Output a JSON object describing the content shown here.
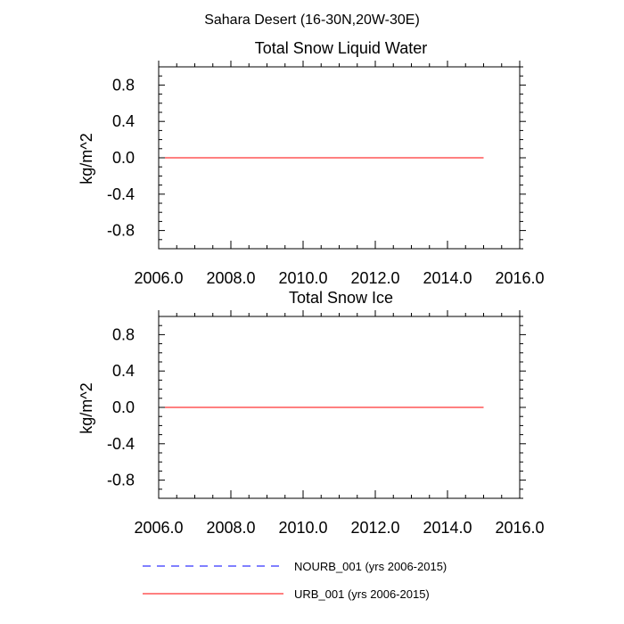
{
  "figure": {
    "suptitle": "Sahara Desert (16-30N,20W-30E)"
  },
  "chart_data": [
    {
      "type": "line",
      "title": "Total Snow Liquid Water",
      "xlabel": "",
      "ylabel": "kg/m^2",
      "xlim": [
        2006.0,
        2016.0
      ],
      "ylim": [
        -1.0,
        1.0
      ],
      "x_ticks": [
        2006.0,
        2008.0,
        2010.0,
        2012.0,
        2014.0,
        2016.0
      ],
      "x_tick_labels": [
        "2006.0",
        "2008.0",
        "2010.0",
        "2012.0",
        "2014.0",
        "2016.0"
      ],
      "y_ticks": [
        0.8,
        0.4,
        0.0,
        -0.4,
        -0.8
      ],
      "y_tick_labels": [
        "0.8",
        "0.4",
        "0.0",
        "-0.4",
        "-0.8"
      ],
      "series": [
        {
          "name": "NOURB_001 (yrs 2006-2015)",
          "color": "#0000ff",
          "dash": "dashed",
          "x": [
            2006.0,
            2015.0
          ],
          "y": [
            0.0,
            0.0
          ]
        },
        {
          "name": "URB_001 (yrs 2006-2015)",
          "color": "#ff0000",
          "dash": "solid",
          "x": [
            2006.0,
            2015.0
          ],
          "y": [
            0.0,
            0.0
          ]
        }
      ]
    },
    {
      "type": "line",
      "title": "Total Snow Ice",
      "xlabel": "",
      "ylabel": "kg/m^2",
      "xlim": [
        2006.0,
        2016.0
      ],
      "ylim": [
        -1.0,
        1.0
      ],
      "x_ticks": [
        2006.0,
        2008.0,
        2010.0,
        2012.0,
        2014.0,
        2016.0
      ],
      "x_tick_labels": [
        "2006.0",
        "2008.0",
        "2010.0",
        "2012.0",
        "2014.0",
        "2016.0"
      ],
      "y_ticks": [
        0.8,
        0.4,
        0.0,
        -0.4,
        -0.8
      ],
      "y_tick_labels": [
        "0.8",
        "0.4",
        "0.0",
        "-0.4",
        "-0.8"
      ],
      "series": [
        {
          "name": "NOURB_001 (yrs 2006-2015)",
          "color": "#0000ff",
          "dash": "dashed",
          "x": [
            2006.0,
            2015.0
          ],
          "y": [
            0.0,
            0.0
          ]
        },
        {
          "name": "URB_001 (yrs 2006-2015)",
          "color": "#ff0000",
          "dash": "solid",
          "x": [
            2006.0,
            2015.0
          ],
          "y": [
            0.0,
            0.0
          ]
        }
      ]
    }
  ],
  "legend": {
    "placement": "bottom",
    "entries": [
      {
        "label": "NOURB_001 (yrs 2006-2015)",
        "color": "#0000ff",
        "dash": "dashed"
      },
      {
        "label": "URB_001 (yrs 2006-2015)",
        "color": "#ff0000",
        "dash": "solid"
      }
    ]
  }
}
